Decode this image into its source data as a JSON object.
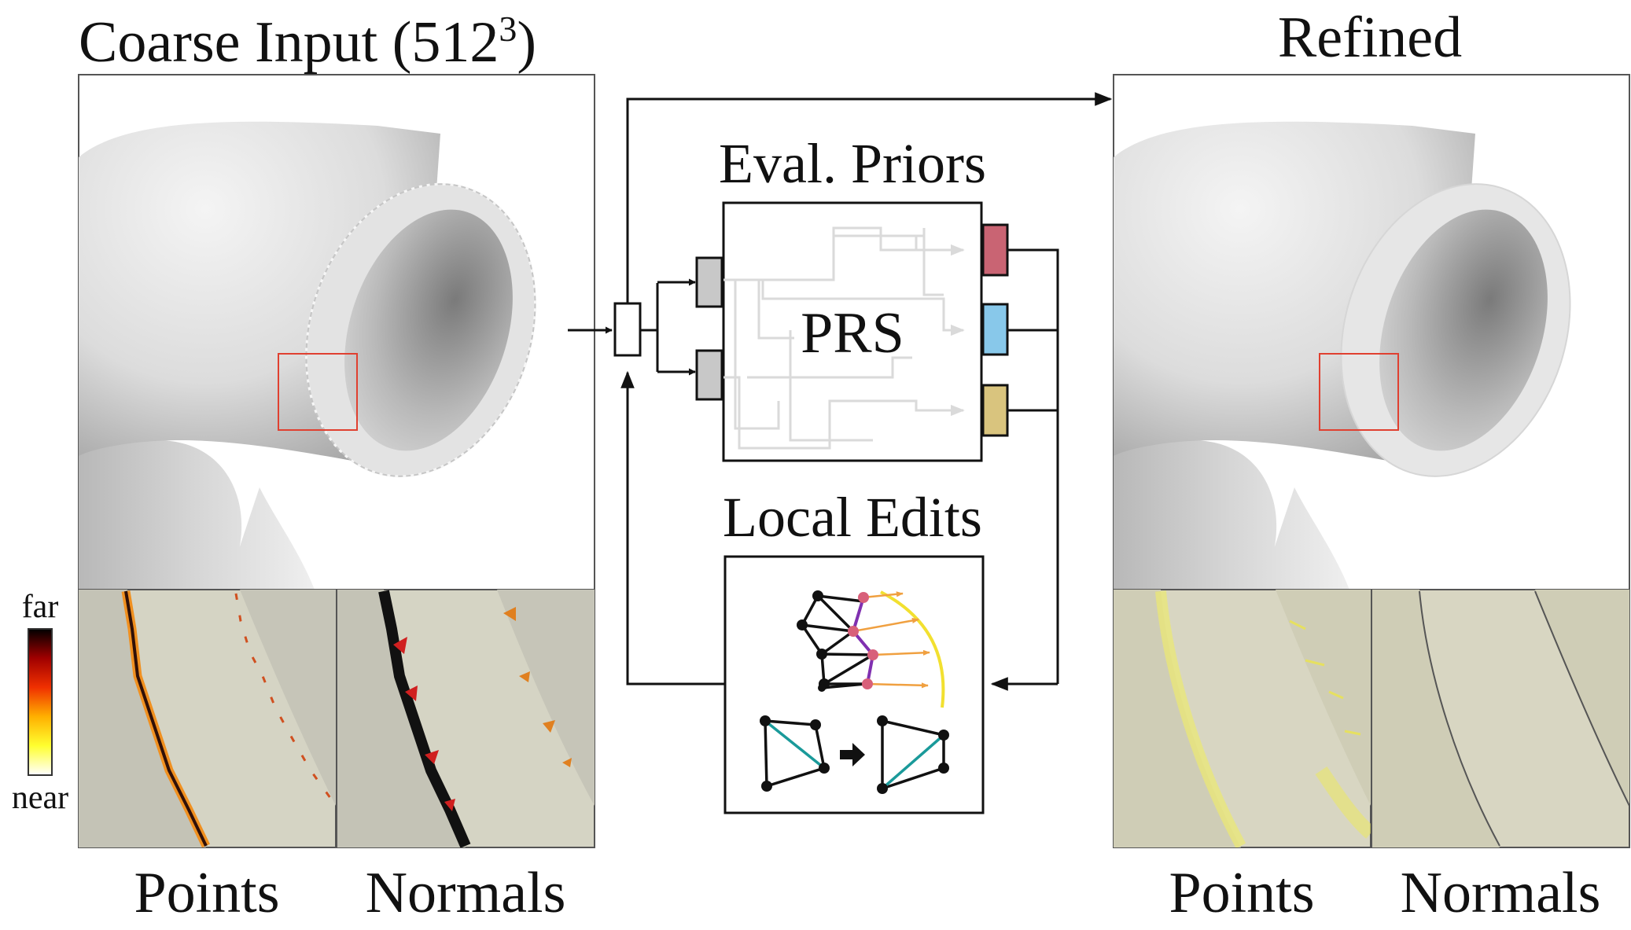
{
  "titles": {
    "coarse_prefix": "Coarse Input (512",
    "coarse_exp": "3",
    "coarse_suffix": ")",
    "refined": "Refined"
  },
  "pipeline": {
    "eval_priors": "Eval. Priors",
    "prs": "PRS",
    "local_edits": "Local Edits",
    "output_colors": [
      "#c96473",
      "#88c8ea",
      "#d9c47e"
    ]
  },
  "colorbar": {
    "far": "far",
    "near": "near",
    "colors": [
      "#ffffff",
      "#ffff30",
      "#ffb000",
      "#f03000",
      "#a00000",
      "#000000"
    ]
  },
  "insets": {
    "left": [
      "Points",
      "Normals"
    ],
    "right": [
      "Points",
      "Normals"
    ]
  }
}
